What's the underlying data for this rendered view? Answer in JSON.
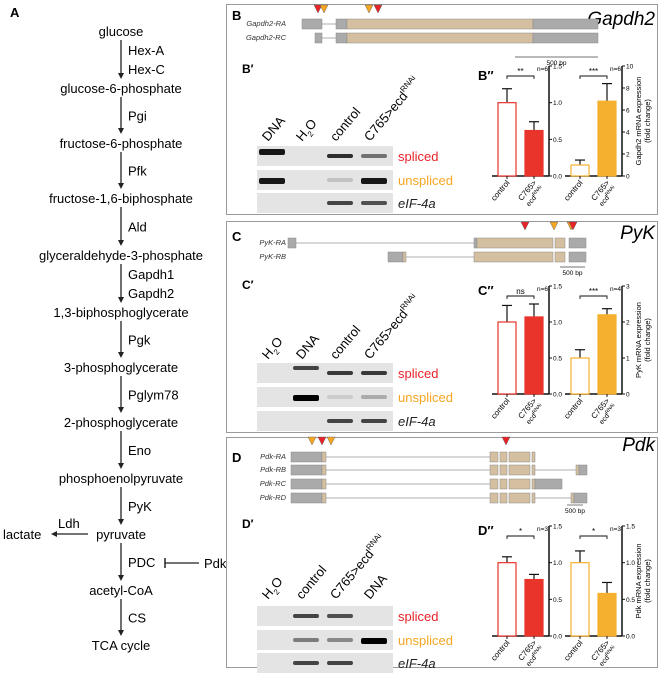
{
  "pathway": {
    "label": "A",
    "metabolites": [
      "glucose",
      "glucose-6-phosphate",
      "fructose-6-phosphate",
      "fructose-1,6-biphosphate",
      "glyceraldehyde-3-phosphate",
      "1,3-biphosphoglycerate",
      "3-phosphoglycerate",
      "2-phosphoglycerate",
      "phosphoenolpyruvate",
      "pyruvate",
      "acetyl-CoA",
      "TCA cycle"
    ],
    "enzymes": [
      [
        "Hex-A",
        "Hex-C"
      ],
      [
        "Pgi"
      ],
      [
        "Pfk"
      ],
      [
        "Ald"
      ],
      [
        "Gapdh1",
        "Gapdh2"
      ],
      [
        "Pgk"
      ],
      [
        "Pglym78"
      ],
      [
        "Eno"
      ],
      [
        "PyK"
      ],
      [
        "PDC"
      ],
      [
        "CS"
      ]
    ],
    "side_product": "lactate",
    "side_enzyme": "Ldh",
    "inhibitor": "Pdk"
  },
  "panels": [
    {
      "label": "B",
      "gene": "Gapdh2",
      "scale": "500 bp",
      "transcripts": [
        "Gapdh2-RA",
        "Gapdh2-RC"
      ],
      "gel": {
        "label": "B′",
        "lanes": [
          "DNA",
          "H2O",
          "control",
          "C765>ecdRNAi"
        ],
        "rows": [
          {
            "label": "spliced",
            "color": "#e8232a",
            "bands": [
              0.9,
              0,
              0.8,
              0.5
            ]
          },
          {
            "label": "unspliced",
            "color": "#f5a623",
            "bands": [
              0.9,
              0,
              0.15,
              0.9
            ]
          },
          {
            "label": "eIF-4a",
            "color": "#222222",
            "italic": true,
            "bands": [
              0,
              0,
              0.7,
              0.65
            ]
          }
        ]
      },
      "chart": {
        "label": "B″",
        "ylabel": [
          "Gapdh2 mRNA expression",
          "(fold change)"
        ],
        "ylabel_italic": "Gapdh2",
        "groups": [
          {
            "color": "#e8342a",
            "ymax": 1.5,
            "ticks": [
              "0.0",
              "0.5",
              "1.0",
              "1.5"
            ],
            "sig": "**",
            "n": "n=6",
            "bars": [
              {
                "label": "control",
                "value": 1.0,
                "err": 0.19
              },
              {
                "label": "C765>",
                "label2": "ecd",
                "sup": "RNAi",
                "value": 0.62,
                "err": 0.12
              }
            ]
          },
          {
            "color": "#f5b02f",
            "ymax": 10,
            "ticks": [
              "0",
              "2",
              "4",
              "6",
              "8",
              "10"
            ],
            "sig": "***",
            "n": "n=6",
            "bars": [
              {
                "label": "control",
                "value": 1.0,
                "err": 0.45
              },
              {
                "label": "C765>",
                "label2": "ecd",
                "sup": "RNAi",
                "value": 6.8,
                "err": 1.6
              }
            ]
          }
        ]
      }
    },
    {
      "label": "C",
      "gene": "PyK",
      "scale": "500 bp",
      "transcripts": [
        "PyK-RA",
        "PyK-RB"
      ],
      "gel": {
        "label": "C′",
        "lanes": [
          "H2O",
          "DNA",
          "control",
          "C765>ecdRNAi"
        ],
        "rows": [
          {
            "label": "spliced",
            "color": "#e8232a",
            "bands": [
              0,
              0.7,
              0.75,
              0.75
            ]
          },
          {
            "label": "unspliced",
            "color": "#f5a623",
            "bands": [
              0,
              1.0,
              0.1,
              0.25
            ]
          },
          {
            "label": "eIF-4a",
            "color": "#222222",
            "italic": true,
            "bands": [
              0,
              0,
              0.7,
              0.7
            ]
          }
        ]
      },
      "chart": {
        "label": "C″",
        "ylabel": [
          "PyK mRNA expression",
          "(fold change)"
        ],
        "ylabel_italic": "PyK",
        "groups": [
          {
            "color": "#e8342a",
            "ymax": 1.5,
            "ticks": [
              "0.0",
              "0.5",
              "1.0",
              "1.5"
            ],
            "sig": "ns",
            "n": "n=6",
            "bars": [
              {
                "label": "control",
                "value": 1.0,
                "err": 0.23
              },
              {
                "label": "C765>",
                "label2": "ecd",
                "sup": "RNAi",
                "value": 1.07,
                "err": 0.18
              }
            ]
          },
          {
            "color": "#f5b02f",
            "ymax": 3,
            "ticks": [
              "0",
              "1",
              "2",
              "3"
            ],
            "sig": "***",
            "n": "n=4",
            "bars": [
              {
                "label": "control",
                "value": 1.0,
                "err": 0.23
              },
              {
                "label": "C765>",
                "label2": "ecd",
                "sup": "RNAi",
                "value": 2.2,
                "err": 0.17
              }
            ]
          }
        ]
      }
    },
    {
      "label": "D",
      "gene": "Pdk",
      "scale": "500 bp",
      "transcripts": [
        "Pdk-RA",
        "Pdk-RB",
        "Pdk-RC",
        "Pdk-RD"
      ],
      "gel": {
        "label": "D′",
        "lanes": [
          "H2O",
          "control",
          "C765>ecdRNAi",
          "DNA"
        ],
        "rows": [
          {
            "label": "spliced",
            "color": "#e8232a",
            "bands": [
              0,
              0.7,
              0.65,
              0
            ]
          },
          {
            "label": "unspliced",
            "color": "#f5a623",
            "bands": [
              0,
              0.45,
              0.4,
              1.0
            ]
          },
          {
            "label": "eIF-4a",
            "color": "#222222",
            "italic": true,
            "bands": [
              0,
              0.7,
              0.7,
              0
            ]
          }
        ]
      },
      "chart": {
        "label": "D″",
        "ylabel": [
          "Pdk mRNA expression",
          "(fold change)"
        ],
        "ylabel_italic": "Pdk",
        "groups": [
          {
            "color": "#e8342a",
            "ymax": 1.5,
            "ticks": [
              "0.0",
              "0.5",
              "1.0",
              "1.5"
            ],
            "sig": "*",
            "n": "n=3",
            "bars": [
              {
                "label": "control",
                "value": 1.0,
                "err": 0.08
              },
              {
                "label": "C765>",
                "label2": "ecd",
                "sup": "RNAi",
                "value": 0.77,
                "err": 0.07
              }
            ]
          },
          {
            "color": "#f5b02f",
            "ymax": 1.5,
            "ticks": [
              "0.0",
              "0.5",
              "1.0",
              "1.5"
            ],
            "sig": "*",
            "n": "n=3",
            "bars": [
              {
                "label": "control",
                "value": 1.0,
                "err": 0.16
              },
              {
                "label": "C765>",
                "label2": "ecd",
                "sup": "RNAi",
                "value": 0.58,
                "err": 0.15
              }
            ]
          }
        ]
      }
    }
  ],
  "colors": {
    "red": "#e8232a",
    "orange": "#f5a623",
    "exon_coding": "#d4c0a0",
    "exon_utr": "#aaaaaa"
  }
}
